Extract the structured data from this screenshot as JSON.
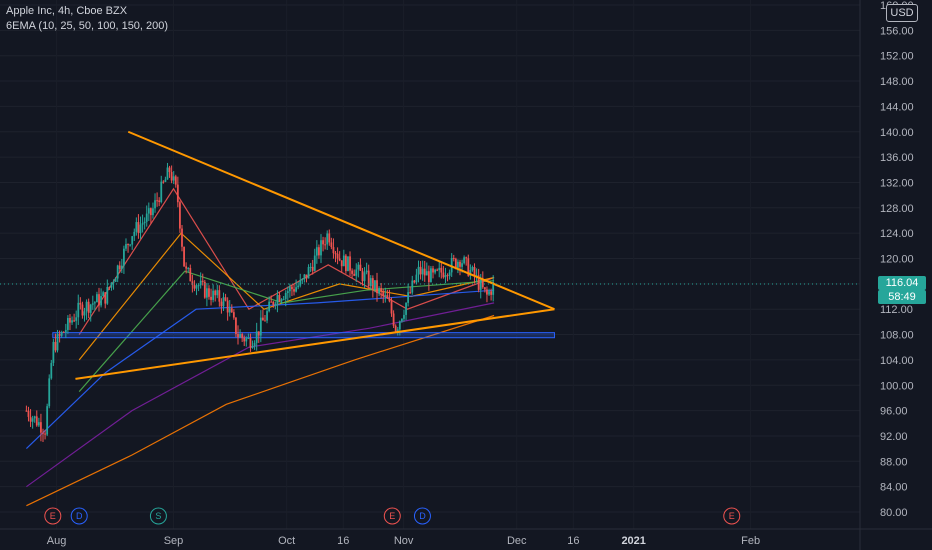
{
  "legend": {
    "symbol_line": "Apple Inc, 4h, Cboe BZX",
    "indicator_line": "6EMA (10, 25, 50, 100, 150, 200)"
  },
  "price_axis": {
    "currency": "USD",
    "ticks": [
      "160.00",
      "156.00",
      "152.00",
      "148.00",
      "144.00",
      "140.00",
      "136.00",
      "132.00",
      "128.00",
      "124.00",
      "120.00",
      "116.00",
      "112.00",
      "108.00",
      "104.00",
      "100.00",
      "96.00",
      "92.00",
      "88.00",
      "84.00",
      "80.00"
    ],
    "tick_values": [
      160,
      156,
      152,
      148,
      144,
      140,
      136,
      132,
      128,
      124,
      120,
      116,
      112,
      108,
      104,
      100,
      96,
      92,
      88,
      84,
      80
    ],
    "last_price": "116.04",
    "countdown": "58:49"
  },
  "time_axis": {
    "labels": [
      "Aug",
      "Sep",
      "Oct",
      "16",
      "Nov",
      "Dec",
      "16",
      "2021",
      "Feb"
    ],
    "bold": [
      "2021"
    ]
  },
  "colors": {
    "background": "#131722",
    "up": "#26a69a",
    "down": "#ef5350",
    "trendline": "#ff9800",
    "zone": "#2962ff"
  },
  "events": [
    {
      "label": "E",
      "type": "earnings",
      "color": "#ef5350"
    },
    {
      "label": "D",
      "type": "dividend",
      "color": "#2962ff"
    },
    {
      "label": "S",
      "type": "split",
      "color": "#26a69a"
    },
    {
      "label": "E",
      "type": "earnings",
      "color": "#ef5350"
    },
    {
      "label": "D",
      "type": "dividend",
      "color": "#2962ff"
    },
    {
      "label": "E",
      "type": "earnings",
      "color": "#ef5350"
    }
  ],
  "chart_data": {
    "type": "candlestick",
    "title": "Apple Inc, 4h, Cboe BZX",
    "ylim": [
      79,
      160
    ],
    "y_ticks": [
      80,
      84,
      88,
      92,
      96,
      100,
      104,
      108,
      112,
      116,
      120,
      124,
      128,
      132,
      136,
      140,
      144,
      148,
      152,
      156,
      160
    ],
    "price_path_approx": [
      {
        "date": "2020-07-24",
        "close": 96
      },
      {
        "date": "2020-07-29",
        "close": 93
      },
      {
        "date": "2020-07-31",
        "close": 106
      },
      {
        "date": "2020-08-07",
        "close": 112
      },
      {
        "date": "2020-08-14",
        "close": 114
      },
      {
        "date": "2020-08-21",
        "close": 124
      },
      {
        "date": "2020-08-26",
        "close": 127
      },
      {
        "date": "2020-08-31",
        "close": 134
      },
      {
        "date": "2020-09-02",
        "close": 130
      },
      {
        "date": "2020-09-04",
        "close": 118
      },
      {
        "date": "2020-09-09",
        "close": 115
      },
      {
        "date": "2020-09-15",
        "close": 113
      },
      {
        "date": "2020-09-18",
        "close": 108
      },
      {
        "date": "2020-09-21",
        "close": 107
      },
      {
        "date": "2020-09-23",
        "close": 108
      },
      {
        "date": "2020-09-28",
        "close": 114
      },
      {
        "date": "2020-10-05",
        "close": 116
      },
      {
        "date": "2020-10-12",
        "close": 124
      },
      {
        "date": "2020-10-15",
        "close": 120
      },
      {
        "date": "2020-10-22",
        "close": 117
      },
      {
        "date": "2020-10-28",
        "close": 113
      },
      {
        "date": "2020-10-30",
        "close": 109
      },
      {
        "date": "2020-11-05",
        "close": 118
      },
      {
        "date": "2020-11-09",
        "close": 117
      },
      {
        "date": "2020-11-16",
        "close": 120
      },
      {
        "date": "2020-11-20",
        "close": 117
      },
      {
        "date": "2020-11-23",
        "close": 114
      },
      {
        "date": "2020-11-25",
        "close": 116
      }
    ],
    "ema_series": [
      {
        "period": 10,
        "color": "#ef5350",
        "points": [
          {
            "date": "2020-08-07",
            "value": 108
          },
          {
            "date": "2020-09-01",
            "value": 131
          },
          {
            "date": "2020-09-21",
            "value": 112
          },
          {
            "date": "2020-10-12",
            "value": 119
          },
          {
            "date": "2020-11-02",
            "value": 112
          },
          {
            "date": "2020-11-25",
            "value": 117
          }
        ]
      },
      {
        "period": 25,
        "color": "#ff9800",
        "points": [
          {
            "date": "2020-08-07",
            "value": 104
          },
          {
            "date": "2020-09-03",
            "value": 124
          },
          {
            "date": "2020-09-25",
            "value": 112
          },
          {
            "date": "2020-10-15",
            "value": 116
          },
          {
            "date": "2020-11-03",
            "value": 114
          },
          {
            "date": "2020-11-25",
            "value": 117
          }
        ]
      },
      {
        "period": 50,
        "color": "#4caf50",
        "points": [
          {
            "date": "2020-08-07",
            "value": 99
          },
          {
            "date": "2020-09-04",
            "value": 118
          },
          {
            "date": "2020-09-30",
            "value": 113
          },
          {
            "date": "2020-10-22",
            "value": 115
          },
          {
            "date": "2020-11-25",
            "value": 116.5
          }
        ]
      },
      {
        "period": 100,
        "color": "#2962ff",
        "points": [
          {
            "date": "2020-07-24",
            "value": 90
          },
          {
            "date": "2020-08-14",
            "value": 102
          },
          {
            "date": "2020-09-07",
            "value": 112
          },
          {
            "date": "2020-10-09",
            "value": 113
          },
          {
            "date": "2020-11-25",
            "value": 115
          }
        ]
      },
      {
        "period": 150,
        "color": "#7b1fa2",
        "points": [
          {
            "date": "2020-07-24",
            "value": 84
          },
          {
            "date": "2020-08-21",
            "value": 96
          },
          {
            "date": "2020-09-21",
            "value": 106
          },
          {
            "date": "2020-10-23",
            "value": 109
          },
          {
            "date": "2020-11-25",
            "value": 113
          }
        ]
      },
      {
        "period": 200,
        "color": "#ff7b00",
        "points": [
          {
            "date": "2020-07-24",
            "value": 81
          },
          {
            "date": "2020-08-21",
            "value": 89
          },
          {
            "date": "2020-09-15",
            "value": 97
          },
          {
            "date": "2020-10-19",
            "value": 104
          },
          {
            "date": "2020-11-25",
            "value": 111
          }
        ]
      }
    ],
    "drawings": {
      "upper_trendline": [
        {
          "date": "2020-08-20",
          "value": 140
        },
        {
          "date": "2020-12-11",
          "value": 112
        }
      ],
      "lower_trendline": [
        {
          "date": "2020-08-06",
          "value": 101
        },
        {
          "date": "2020-12-11",
          "value": 112
        }
      ],
      "support_zone": {
        "from_date": "2020-07-31",
        "to_date": "2020-12-11",
        "low": 107.5,
        "high": 108.3
      }
    }
  }
}
